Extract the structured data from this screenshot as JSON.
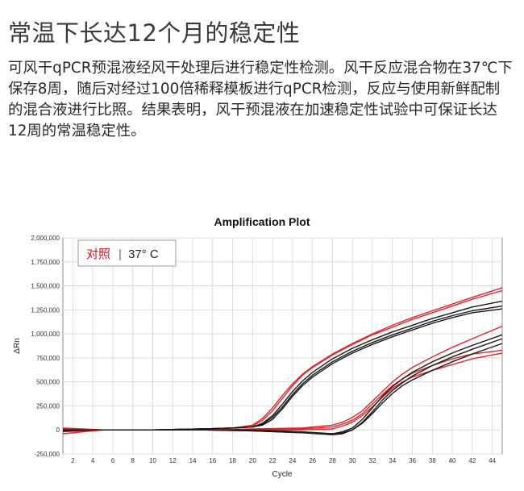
{
  "page": {
    "heading": "常温下长达12个月的稳定性",
    "description": "可风干qPCR预混液经风干处理后进行稳定性检测。风干反应混合物在37℃下保存8周，随后对经过100倍稀释模板进行qPCR检测，反应与使用新鲜配制的混合液进行比照。结果表明，风干预混液在加速稳定性试验中可保证长达12周的常温稳定性。"
  },
  "colors": {
    "red": "#e0262b",
    "black": "#1a1a1a",
    "grid": "#dcdcdc"
  },
  "chart_data": {
    "type": "line",
    "title": "Amplification Plot",
    "xlabel": "Cycle",
    "ylabel": "ΔRn",
    "xlim": [
      1,
      45
    ],
    "ylim": [
      -250000,
      2000000
    ],
    "grid": true,
    "x_ticks": [
      2,
      4,
      6,
      8,
      10,
      12,
      14,
      16,
      18,
      20,
      22,
      24,
      26,
      28,
      30,
      32,
      34,
      36,
      38,
      40,
      42,
      44
    ],
    "y_ticks": [
      -250000,
      0,
      250000,
      500000,
      750000,
      1000000,
      1250000,
      1500000,
      1750000,
      2000000
    ],
    "y_tick_labels": [
      "-250,000",
      "0",
      "250,000",
      "500,000",
      "750,000",
      "1,000,000",
      "1,250,000",
      "1,500,000",
      "1,750,000",
      "2,000,000"
    ],
    "legend": {
      "label": "对照",
      "separator": "|",
      "value": "37° C",
      "placement": "top-left"
    },
    "series": [
      {
        "color": "red",
        "x": [
          1,
          5,
          10,
          15,
          18,
          20,
          21,
          22,
          23,
          24,
          25,
          26,
          28,
          30,
          32,
          34,
          36,
          38,
          40,
          42,
          45
        ],
        "y": [
          0,
          0,
          0,
          10000,
          20000,
          50000,
          120000,
          230000,
          360000,
          480000,
          580000,
          660000,
          790000,
          900000,
          1000000,
          1090000,
          1170000,
          1240000,
          1310000,
          1380000,
          1480000
        ]
      },
      {
        "color": "red",
        "x": [
          1,
          5,
          10,
          15,
          18,
          20,
          21,
          22,
          23,
          24,
          25,
          26,
          28,
          30,
          32,
          34,
          36,
          38,
          40,
          42,
          45
        ],
        "y": [
          10000,
          0,
          0,
          10000,
          20000,
          40000,
          100000,
          200000,
          330000,
          460000,
          570000,
          650000,
          780000,
          890000,
          990000,
          1070000,
          1150000,
          1220000,
          1290000,
          1360000,
          1450000
        ]
      },
      {
        "color": "black",
        "x": [
          1,
          5,
          10,
          15,
          18,
          20,
          21,
          22,
          23,
          24,
          25,
          26,
          28,
          30,
          32,
          34,
          36,
          38,
          40,
          42,
          45
        ],
        "y": [
          0,
          0,
          0,
          10000,
          20000,
          30000,
          70000,
          150000,
          270000,
          400000,
          510000,
          600000,
          740000,
          850000,
          940000,
          1020000,
          1090000,
          1160000,
          1220000,
          1280000,
          1340000
        ]
      },
      {
        "color": "black",
        "x": [
          1,
          5,
          10,
          15,
          18,
          20,
          21,
          22,
          23,
          24,
          25,
          26,
          28,
          30,
          32,
          34,
          36,
          38,
          40,
          42,
          45
        ],
        "y": [
          0,
          0,
          0,
          10000,
          20000,
          30000,
          60000,
          130000,
          240000,
          370000,
          480000,
          570000,
          710000,
          820000,
          910000,
          990000,
          1060000,
          1130000,
          1190000,
          1240000,
          1290000
        ]
      },
      {
        "color": "black",
        "x": [
          1,
          5,
          10,
          15,
          18,
          20,
          21,
          22,
          23,
          24,
          25,
          26,
          28,
          30,
          32,
          34,
          36,
          38,
          40,
          42,
          45
        ],
        "y": [
          0,
          0,
          0,
          10000,
          20000,
          30000,
          50000,
          110000,
          220000,
          350000,
          460000,
          550000,
          690000,
          800000,
          890000,
          970000,
          1040000,
          1110000,
          1170000,
          1220000,
          1260000
        ]
      },
      {
        "color": "red",
        "x": [
          1,
          5,
          10,
          15,
          20,
          25,
          28,
          29,
          30,
          31,
          32,
          33,
          34,
          35,
          36,
          38,
          40,
          42,
          45
        ],
        "y": [
          -20000,
          0,
          0,
          0,
          10000,
          20000,
          50000,
          80000,
          130000,
          200000,
          300000,
          400000,
          500000,
          580000,
          650000,
          760000,
          860000,
          950000,
          1080000
        ]
      },
      {
        "color": "red",
        "x": [
          1,
          5,
          10,
          15,
          20,
          25,
          28,
          29,
          30,
          31,
          32,
          33,
          34,
          35,
          36,
          38,
          40,
          42,
          45
        ],
        "y": [
          -40000,
          0,
          0,
          0,
          0,
          10000,
          30000,
          60000,
          100000,
          170000,
          270000,
          370000,
          460000,
          530000,
          590000,
          670000,
          740000,
          790000,
          830000
        ]
      },
      {
        "color": "red",
        "x": [
          1,
          5,
          10,
          15,
          20,
          25,
          28,
          29,
          30,
          31,
          32,
          33,
          34,
          35,
          36,
          38,
          40,
          42,
          45
        ],
        "y": [
          20000,
          0,
          0,
          0,
          0,
          0,
          10000,
          40000,
          80000,
          150000,
          240000,
          340000,
          430000,
          500000,
          550000,
          620000,
          680000,
          740000,
          800000
        ]
      },
      {
        "color": "black",
        "x": [
          1,
          5,
          10,
          15,
          20,
          25,
          28,
          29,
          30,
          31,
          32,
          33,
          34,
          35,
          36,
          38,
          40,
          42,
          45
        ],
        "y": [
          0,
          0,
          0,
          0,
          -10000,
          -30000,
          -40000,
          -20000,
          20000,
          110000,
          230000,
          350000,
          450000,
          530000,
          600000,
          710000,
          800000,
          880000,
          990000
        ]
      },
      {
        "color": "black",
        "x": [
          1,
          5,
          10,
          15,
          20,
          25,
          28,
          29,
          30,
          31,
          32,
          33,
          34,
          35,
          36,
          38,
          40,
          42,
          45
        ],
        "y": [
          -10000,
          0,
          0,
          0,
          -10000,
          -30000,
          -50000,
          -40000,
          0,
          80000,
          190000,
          310000,
          410000,
          490000,
          560000,
          670000,
          760000,
          840000,
          950000
        ]
      },
      {
        "color": "black",
        "x": [
          1,
          5,
          10,
          15,
          20,
          25,
          28,
          29,
          30,
          31,
          32,
          33,
          34,
          35,
          36,
          38,
          40,
          42,
          45
        ],
        "y": [
          0,
          0,
          0,
          0,
          0,
          -20000,
          -40000,
          -30000,
          0,
          70000,
          170000,
          280000,
          380000,
          460000,
          520000,
          620000,
          710000,
          790000,
          900000
        ]
      }
    ]
  }
}
